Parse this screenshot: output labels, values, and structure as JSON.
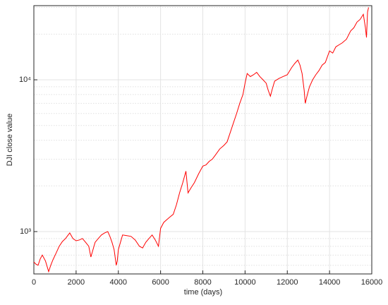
{
  "chart_data": {
    "type": "line",
    "xlabel": "time (days)",
    "ylabel": "DJI close value",
    "y_scale": "log",
    "grid": true,
    "xlim": [
      0,
      16000
    ],
    "xticks": [
      0,
      2000,
      4000,
      6000,
      8000,
      10000,
      12000,
      14000,
      16000
    ],
    "ylim": [
      526,
      30800
    ],
    "yticks": [
      {
        "value": 1000,
        "label": "10³"
      },
      {
        "value": 10000,
        "label": "10⁴"
      }
    ],
    "minor_yticks": [
      600,
      700,
      800,
      900,
      2000,
      3000,
      4000,
      5000,
      6000,
      7000,
      8000,
      9000,
      20000,
      30000
    ],
    "series": [
      {
        "name": "DJI",
        "color": "#ff0000",
        "x": [
          0,
          100,
          200,
          300,
          400,
          550,
          700,
          800,
          900,
          1050,
          1200,
          1350,
          1500,
          1600,
          1700,
          1850,
          2000,
          2150,
          2300,
          2450,
          2600,
          2700,
          2800,
          2900,
          3050,
          3200,
          3350,
          3500,
          3600,
          3700,
          3800,
          3900,
          3950,
          4000,
          4100,
          4200,
          4400,
          4600,
          4800,
          5000,
          5150,
          5300,
          5450,
          5600,
          5750,
          5900,
          6000,
          6150,
          6300,
          6450,
          6600,
          6750,
          6900,
          7050,
          7200,
          7300,
          7450,
          7600,
          7800,
          8000,
          8150,
          8300,
          8450,
          8600,
          8800,
          9000,
          9150,
          9300,
          9450,
          9600,
          9750,
          9900,
          10000,
          10100,
          10250,
          10400,
          10550,
          10700,
          10850,
          11000,
          11100,
          11200,
          11300,
          11400,
          11600,
          11800,
          12000,
          12200,
          12350,
          12500,
          12600,
          12700,
          12800,
          12850,
          12950,
          13050,
          13200,
          13350,
          13500,
          13650,
          13800,
          14000,
          14150,
          14300,
          14450,
          14600,
          14800,
          15000,
          15150,
          15300,
          15450,
          15600,
          15700,
          15750,
          15800,
          15850
        ],
        "values": [
          630,
          610,
          600,
          660,
          700,
          640,
          545,
          600,
          650,
          720,
          800,
          860,
          900,
          940,
          980,
          900,
          870,
          880,
          900,
          850,
          800,
          680,
          760,
          850,
          900,
          950,
          980,
          1000,
          930,
          850,
          760,
          600,
          640,
          760,
          850,
          950,
          940,
          930,
          880,
          800,
          780,
          850,
          900,
          950,
          880,
          800,
          1050,
          1150,
          1200,
          1250,
          1300,
          1500,
          1800,
          2100,
          2500,
          1800,
          1950,
          2100,
          2400,
          2700,
          2750,
          2900,
          3000,
          3200,
          3500,
          3700,
          3900,
          4500,
          5200,
          6000,
          7000,
          8000,
          9500,
          11000,
          10500,
          10800,
          11200,
          10500,
          10000,
          9500,
          8500,
          7800,
          8800,
          9800,
          10200,
          10500,
          10800,
          12000,
          12800,
          13500,
          12500,
          11000,
          8500,
          7000,
          8000,
          9000,
          10000,
          10800,
          11500,
          12500,
          13000,
          15500,
          15000,
          16500,
          17000,
          17500,
          18500,
          21000,
          22000,
          24000,
          25000,
          27000,
          22000,
          19000,
          28000,
          30000
        ]
      }
    ]
  }
}
